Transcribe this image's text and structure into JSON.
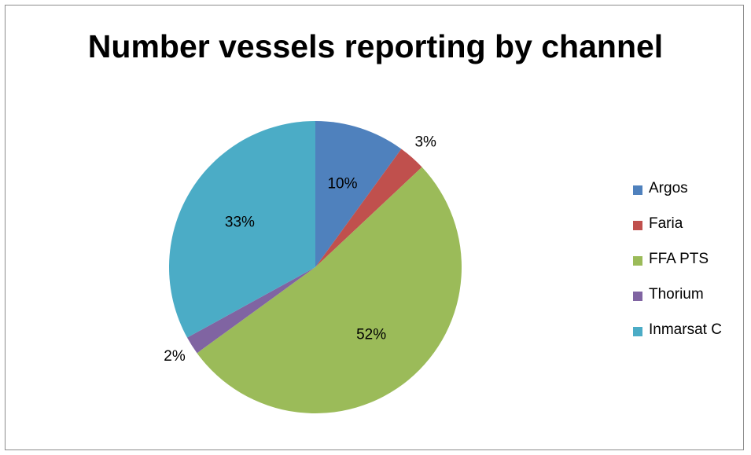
{
  "chart_data": {
    "type": "pie",
    "title": "Number vessels reporting by channel",
    "categories": [
      "Argos",
      "Faria",
      "FFA PTS",
      "Thorium",
      "Inmarsat C"
    ],
    "values": [
      10,
      3,
      52,
      2,
      33
    ],
    "data_labels": [
      "10%",
      "3%",
      "52%",
      "2%",
      "33%"
    ],
    "colors": [
      "#4f81bd",
      "#c0504d",
      "#9bbb59",
      "#8064a2",
      "#4bacc6"
    ],
    "legend_position": "right"
  }
}
